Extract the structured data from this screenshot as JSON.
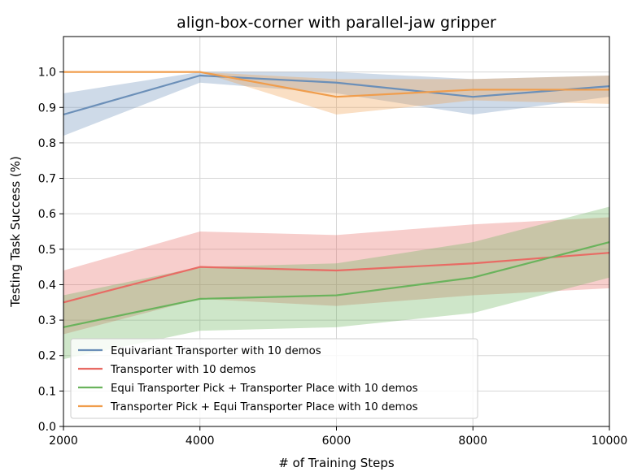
{
  "chart_data": {
    "type": "line",
    "title": "align-box-corner with parallel-jaw gripper",
    "xlabel": "# of Training Steps",
    "ylabel": "Testing Task Success (%)",
    "x": [
      2000,
      4000,
      6000,
      8000,
      10000
    ],
    "xlim": [
      2000,
      10000
    ],
    "ylim": [
      0.0,
      1.1
    ],
    "xticks": [
      2000,
      4000,
      6000,
      8000,
      10000
    ],
    "yticks": [
      0.0,
      0.1,
      0.2,
      0.3,
      0.4,
      0.5,
      0.6,
      0.7,
      0.8,
      0.9,
      1.0
    ],
    "ytick_labels": [
      "0.0",
      "0.1",
      "0.2",
      "0.3",
      "0.4",
      "0.5",
      "0.6",
      "0.7",
      "0.8",
      "0.9",
      "1.0"
    ],
    "grid": true,
    "legend_position": "lower-left",
    "series": [
      {
        "name": "Equivariant Transporter with 10 demos",
        "color": "#6b8fb8",
        "values": [
          0.88,
          0.99,
          0.97,
          0.93,
          0.96
        ],
        "lower": [
          0.82,
          0.97,
          0.94,
          0.88,
          0.93
        ],
        "upper": [
          0.94,
          1.0,
          1.0,
          0.98,
          0.99
        ]
      },
      {
        "name": "Transporter with 10 demos",
        "color": "#e86b64",
        "values": [
          0.35,
          0.45,
          0.44,
          0.46,
          0.49
        ],
        "lower": [
          0.26,
          0.36,
          0.34,
          0.37,
          0.39
        ],
        "upper": [
          0.44,
          0.55,
          0.54,
          0.57,
          0.59
        ]
      },
      {
        "name": "Equi Transporter Pick + Transporter Place with 10 demos",
        "color": "#6ab35c",
        "values": [
          0.28,
          0.36,
          0.37,
          0.42,
          0.52
        ],
        "lower": [
          0.19,
          0.27,
          0.28,
          0.32,
          0.42
        ],
        "upper": [
          0.37,
          0.45,
          0.46,
          0.52,
          0.62
        ]
      },
      {
        "name": "Transporter Pick + Equi Transporter Place with 10 demos",
        "color": "#f09d4c",
        "values": [
          1.0,
          1.0,
          0.93,
          0.95,
          0.95
        ],
        "lower": [
          1.0,
          1.0,
          0.88,
          0.92,
          0.91
        ],
        "upper": [
          1.0,
          1.0,
          0.98,
          0.98,
          0.99
        ]
      }
    ]
  }
}
